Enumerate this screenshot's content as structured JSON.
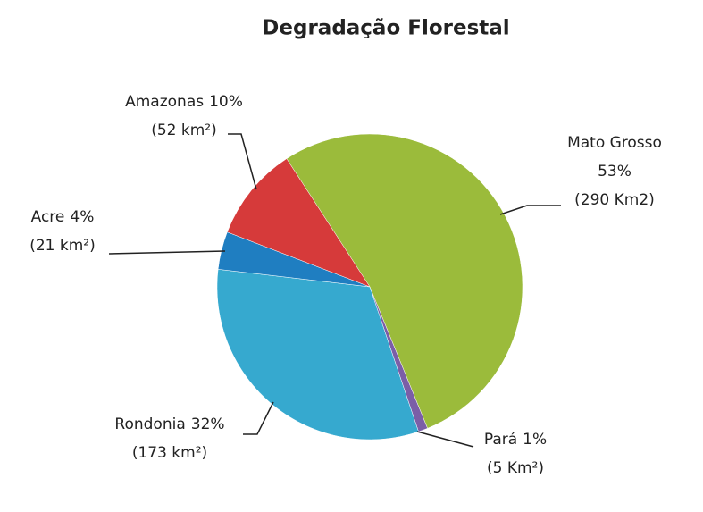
{
  "chart_data": {
    "type": "pie",
    "title": "Degradação Florestal",
    "categories": [
      "Mato Grosso",
      "Pará",
      "Rondonia",
      "Acre",
      "Amazonas"
    ],
    "values": [
      53,
      1,
      32,
      4,
      10
    ],
    "value_labels": [
      "53%",
      "1%",
      "32%",
      "4%",
      "10%"
    ],
    "area_labels": [
      "(290 Km2)",
      "(5 Km²)",
      "(173 km²)",
      "(21 km²)",
      "(52 km²)"
    ],
    "colors": [
      "#9bbb3b",
      "#7b5ea7",
      "#36a9cf",
      "#1f7ec1",
      "#d63a3a"
    ]
  }
}
